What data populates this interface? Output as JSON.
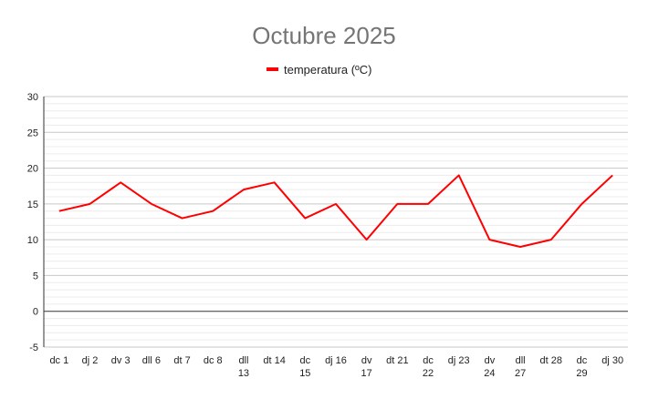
{
  "chart_data": {
    "type": "line",
    "title": "Octubre 2025",
    "xlabel": "",
    "ylabel": "",
    "legend_position": "top",
    "grid": true,
    "ylim": [
      -5,
      30
    ],
    "yticks": [
      -5,
      0,
      5,
      10,
      15,
      20,
      25,
      30
    ],
    "categories": [
      "dc 1",
      "dj 2",
      "dv 3",
      "dll 6",
      "dt 7",
      "dc 8",
      "dll 13",
      "dt 14",
      "dc 15",
      "dj 16",
      "dv 17",
      "dt 21",
      "dc 22",
      "dj 23",
      "dv 24",
      "dll 27",
      "dt 28",
      "dc 29",
      "dj 30"
    ],
    "category_lines": [
      [
        "dc 1"
      ],
      [
        "dj 2"
      ],
      [
        "dv 3"
      ],
      [
        "dll 6"
      ],
      [
        "dt 7"
      ],
      [
        "dc 8"
      ],
      [
        "dll",
        "13"
      ],
      [
        "dt 14"
      ],
      [
        "dc",
        "15"
      ],
      [
        "dj 16"
      ],
      [
        "dv",
        "17"
      ],
      [
        "dt 21"
      ],
      [
        "dc",
        "22"
      ],
      [
        "dj 23"
      ],
      [
        "dv",
        "24"
      ],
      [
        "dll",
        "27"
      ],
      [
        "dt 28"
      ],
      [
        "dc",
        "29"
      ],
      [
        "dj 30"
      ]
    ],
    "series": [
      {
        "name": "temperatura (ºC)",
        "color": "#ff0000",
        "values": [
          14,
          15,
          18,
          15,
          13,
          14,
          17,
          18,
          13,
          15,
          10,
          15,
          15,
          19,
          10,
          9,
          10,
          15,
          19
        ]
      }
    ]
  }
}
